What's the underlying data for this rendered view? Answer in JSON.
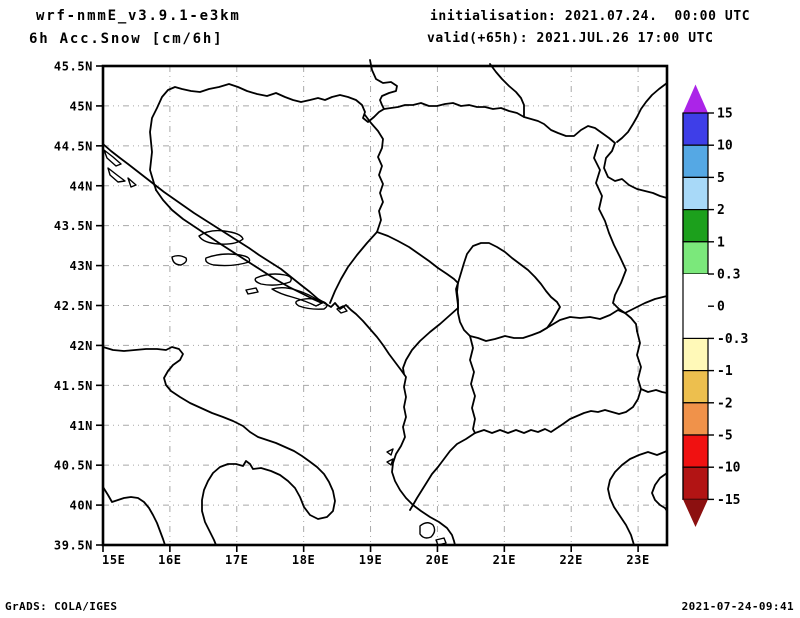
{
  "header": {
    "model": "wrf-nmmE_v3.9.1-e3km",
    "field": "6h Acc.Snow [cm/6h]",
    "init": "initialisation: 2021.07.24.  00:00 UTC",
    "valid": "valid(+65h): 2021.JUL.26 17:00 UTC"
  },
  "footer": {
    "credit": "GrADS: COLA/IGES",
    "timestamp": "2021-07-24-09:41"
  },
  "chart_data": {
    "type": "heatmap",
    "title": "6h Acc.Snow [cm/6h]",
    "model": "wrf-nmmE_v3.9.1-e3km",
    "init_time": "2021.07.24. 00:00 UTC",
    "valid_time": "2021.JUL.26 17:00 UTC (+65h)",
    "region": "Adriatic / Balkans: Italy east coast, Croatia, Bosnia, Serbia, Montenegro, Kosovo, Albania, North Macedonia, northern Greece",
    "grid": true,
    "x_axis": {
      "ticks": [
        "15E",
        "16E",
        "17E",
        "18E",
        "19E",
        "20E",
        "21E",
        "22E",
        "23E"
      ],
      "range_deg_east": [
        15,
        23.4
      ]
    },
    "y_axis": {
      "ticks": [
        "45.5N",
        "45N",
        "44.5N",
        "44N",
        "43.5N",
        "43N",
        "42.5N",
        "42N",
        "41.5N",
        "41N",
        "40.5N",
        "40N",
        "39.5N"
      ],
      "range_deg_north": [
        39.5,
        45.5
      ]
    },
    "field_values": "entire domain in the 0 to 0.3 band (white) - no accumulated snow plotted",
    "colorbar": {
      "unit": "cm/6h",
      "tick_labels": [
        "15",
        "10",
        "5",
        "2",
        "1",
        "0.3",
        "0",
        "-0.3",
        "-1",
        "-2",
        "-5",
        "-10",
        "-15"
      ],
      "colors": [
        "#AB24E8",
        "#3E3EE8",
        "#55A8E4",
        "#A8D9F8",
        "#1CA01C",
        "#7BE87B",
        "#FFFFFF",
        "#FFFFFF",
        "#FFF9B8",
        "#EDBF4E",
        "#F0924A",
        "#F01111",
        "#B21414",
        "#8C1010"
      ],
      "arrow_top_color": "#AB24E8",
      "arrow_bottom_color": "#8C1010"
    }
  }
}
